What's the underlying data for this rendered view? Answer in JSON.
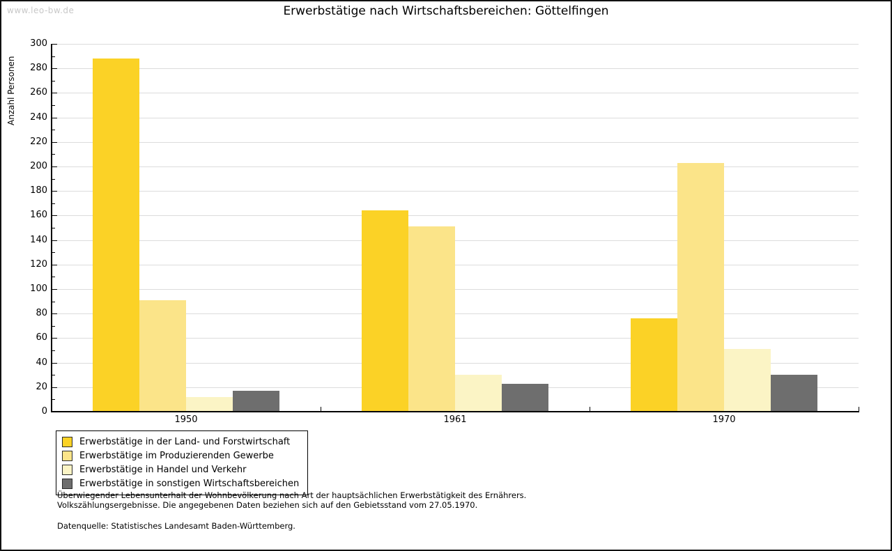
{
  "watermark": "www.leo-bw.de",
  "title": "Erwerbstätige nach Wirtschaftsbereichen: Göttelfingen",
  "chart_data": {
    "type": "bar",
    "title": "Erwerbstätige nach Wirtschaftsbereichen: Göttelfingen",
    "xlabel": "",
    "ylabel": "Anzahl Personen",
    "categories": [
      "1950",
      "1961",
      "1970"
    ],
    "series": [
      {
        "name": "Erwerbstätige in der Land- und Forstwirtschaft",
        "color": "#FBD226",
        "values": [
          288,
          164,
          76
        ]
      },
      {
        "name": "Erwerbstätige im Produzierenden Gewerbe",
        "color": "#FBE489",
        "values": [
          91,
          151,
          203
        ]
      },
      {
        "name": "Erwerbstätige in Handel und Verkehr",
        "color": "#FBF4C5",
        "values": [
          12,
          30,
          51
        ]
      },
      {
        "name": "Erwerbstätige in sonstigen Wirtschaftsbereichen",
        "color": "#6E6E6E",
        "values": [
          17,
          23,
          30
        ]
      }
    ],
    "ylim": [
      0,
      300
    ],
    "ytick_major": 20,
    "ytick_minor": 10,
    "grid": "horizontal-major-light-gray",
    "legend_position": "bottom-left"
  },
  "footnotes": {
    "line1": "Überwiegender Lebensunterhalt der Wohnbevölkerung nach Art der hauptsächlichen Erwerbstätigkeit des Ernährers.",
    "line2": "Volkszählungsergebnisse. Die angegebenen Daten beziehen sich auf den Gebietsstand vom 27.05.1970.",
    "source": "Datenquelle: Statistisches Landesamt Baden-Württemberg."
  },
  "colors": {
    "axis": "#000000",
    "gridline": "#DCDCDC",
    "watermark": "#C8C8C8",
    "text": "#000000"
  }
}
